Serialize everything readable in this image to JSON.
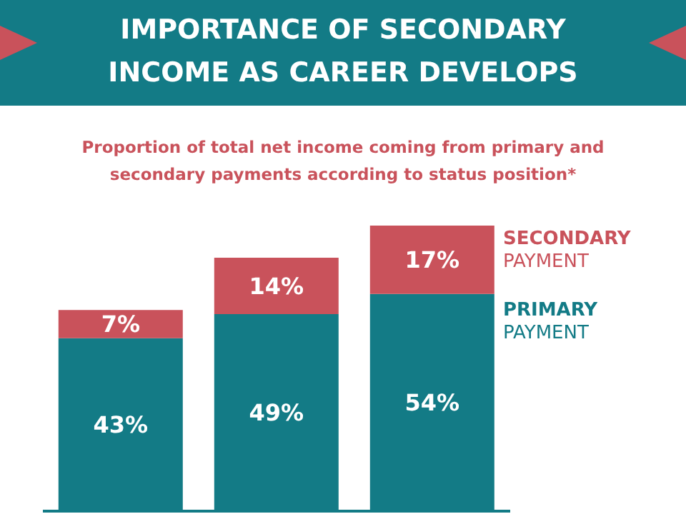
{
  "chart_data": {
    "type": "bar",
    "title": "IMPORTANCE OF SECONDARY INCOME AS CAREER DEVELOPS",
    "subtitle": "Proportion of total net income coming from primary and secondary payments according to status position*",
    "categories": [
      null,
      null,
      null
    ],
    "stacked": true,
    "legend": "right",
    "series": [
      {
        "name": "PRIMARY PAYMENT",
        "color": "#137b86",
        "values": [
          43,
          49,
          54
        ],
        "value_labels": [
          "43%",
          "49%",
          "54%"
        ]
      },
      {
        "name": "SECONDARY PAYMENT",
        "color": "#c9525b",
        "values": [
          7,
          14,
          17
        ],
        "value_labels": [
          "7%",
          "14%",
          "17%"
        ]
      }
    ]
  }
}
